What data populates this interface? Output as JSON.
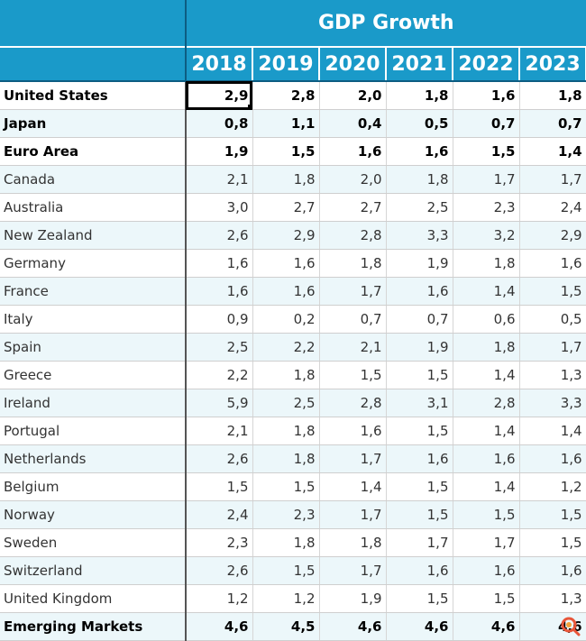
{
  "chart_data": {
    "type": "table",
    "title": "GDP Growth",
    "columns": [
      "2018",
      "2019",
      "2020",
      "2021",
      "2022",
      "2023"
    ],
    "rows": [
      {
        "name": "United States",
        "bold": true,
        "values": [
          "2,9",
          "2,8",
          "2,0",
          "1,8",
          "1,6",
          "1,8"
        ]
      },
      {
        "name": "Japan",
        "bold": true,
        "values": [
          "0,8",
          "1,1",
          "0,4",
          "0,5",
          "0,7",
          "0,7"
        ]
      },
      {
        "name": "Euro Area",
        "bold": true,
        "values": [
          "1,9",
          "1,5",
          "1,6",
          "1,6",
          "1,5",
          "1,4"
        ]
      },
      {
        "name": "Canada",
        "bold": false,
        "values": [
          "2,1",
          "1,8",
          "2,0",
          "1,8",
          "1,7",
          "1,7"
        ]
      },
      {
        "name": "Australia",
        "bold": false,
        "values": [
          "3,0",
          "2,7",
          "2,7",
          "2,5",
          "2,3",
          "2,4"
        ]
      },
      {
        "name": "New Zealand",
        "bold": false,
        "values": [
          "2,6",
          "2,9",
          "2,8",
          "3,3",
          "3,2",
          "2,9"
        ]
      },
      {
        "name": "Germany",
        "bold": false,
        "values": [
          "1,6",
          "1,6",
          "1,8",
          "1,9",
          "1,8",
          "1,6"
        ]
      },
      {
        "name": "France",
        "bold": false,
        "values": [
          "1,6",
          "1,6",
          "1,7",
          "1,6",
          "1,4",
          "1,5"
        ]
      },
      {
        "name": "Italy",
        "bold": false,
        "values": [
          "0,9",
          "0,2",
          "0,7",
          "0,7",
          "0,6",
          "0,5"
        ]
      },
      {
        "name": "Spain",
        "bold": false,
        "values": [
          "2,5",
          "2,2",
          "2,1",
          "1,9",
          "1,8",
          "1,7"
        ]
      },
      {
        "name": "Greece",
        "bold": false,
        "values": [
          "2,2",
          "1,8",
          "1,5",
          "1,5",
          "1,4",
          "1,3"
        ]
      },
      {
        "name": "Ireland",
        "bold": false,
        "values": [
          "5,9",
          "2,5",
          "2,8",
          "3,1",
          "2,8",
          "3,3"
        ]
      },
      {
        "name": "Portugal",
        "bold": false,
        "values": [
          "2,1",
          "1,8",
          "1,6",
          "1,5",
          "1,4",
          "1,4"
        ]
      },
      {
        "name": "Netherlands",
        "bold": false,
        "values": [
          "2,6",
          "1,8",
          "1,7",
          "1,6",
          "1,6",
          "1,6"
        ]
      },
      {
        "name": "Belgium",
        "bold": false,
        "values": [
          "1,5",
          "1,5",
          "1,4",
          "1,5",
          "1,4",
          "1,2"
        ]
      },
      {
        "name": "Norway",
        "bold": false,
        "values": [
          "2,4",
          "2,3",
          "1,7",
          "1,5",
          "1,5",
          "1,5"
        ]
      },
      {
        "name": "Sweden",
        "bold": false,
        "values": [
          "2,3",
          "1,8",
          "1,8",
          "1,7",
          "1,7",
          "1,5"
        ]
      },
      {
        "name": "Switzerland",
        "bold": false,
        "values": [
          "2,6",
          "1,5",
          "1,7",
          "1,6",
          "1,6",
          "1,6"
        ]
      },
      {
        "name": "United Kingdom",
        "bold": false,
        "values": [
          "1,2",
          "1,2",
          "1,9",
          "1,5",
          "1,5",
          "1,3"
        ]
      },
      {
        "name": "Emerging Markets",
        "bold": true,
        "values": [
          "4,6",
          "4,5",
          "4,6",
          "4,6",
          "4,6",
          "4,6"
        ]
      }
    ],
    "selected_cell": {
      "row": "United States",
      "column": "2018"
    }
  },
  "colors": {
    "header_bg": "#1a9ac9",
    "header_text": "#ffffff",
    "alt_row": "#ecf7fa"
  },
  "watermark_icon": "magnifier-logo-icon"
}
